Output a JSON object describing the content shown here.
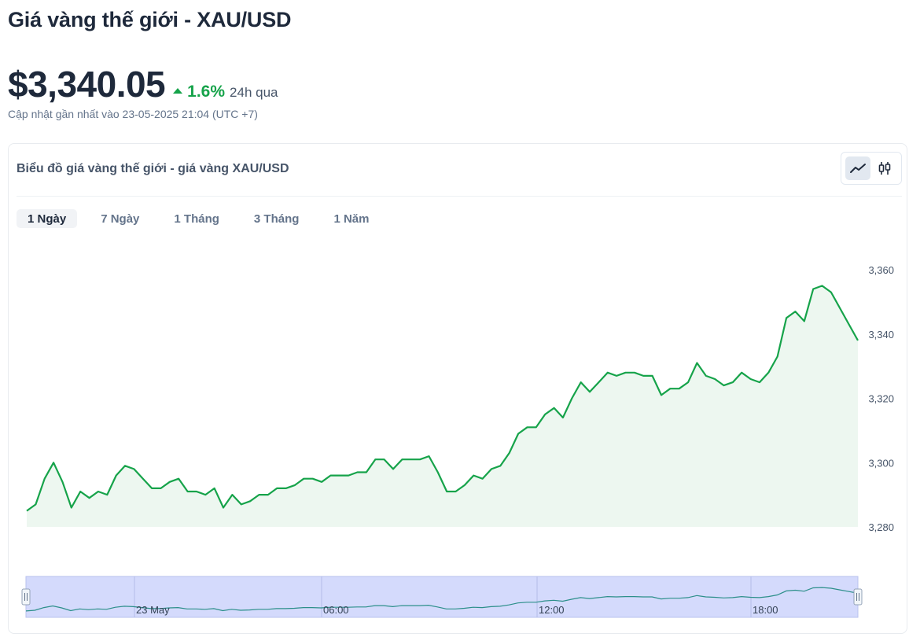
{
  "header": {
    "title": "Giá vàng thế giới - XAU/USD",
    "price": "$3,340.05",
    "change_pct": "1.6%",
    "change_period": "24h qua",
    "updated": "Cập nhật gần nhất vào 23-05-2025 21:04 (UTC +7)"
  },
  "card": {
    "title": "Biểu đồ giá vàng thế giới - giá vàng XAU/USD",
    "chart_types": [
      {
        "icon": "line-chart-icon",
        "active": true
      },
      {
        "icon": "candlestick-icon",
        "active": false
      }
    ]
  },
  "tabs": [
    {
      "label": "1 Ngày",
      "active": true
    },
    {
      "label": "7 Ngày",
      "active": false
    },
    {
      "label": "1 Tháng",
      "active": false
    },
    {
      "label": "3 Tháng",
      "active": false
    },
    {
      "label": "1 Năm",
      "active": false
    }
  ],
  "colors": {
    "line": "#16a34a",
    "area": "#edf7f0",
    "navigator_bg": "#d4dafc",
    "navigator_line": "#2c8f8a",
    "up": "#16a34a"
  },
  "chart_data": {
    "type": "area",
    "ylim": [
      3280,
      3360
    ],
    "yticks": [
      "3,280",
      "3,300",
      "3,320",
      "3,340",
      "3,360"
    ],
    "ytick_values": [
      3280,
      3300,
      3320,
      3340,
      3360
    ],
    "grid": false,
    "values": [
      3285,
      3287,
      3295,
      3300,
      3294,
      3286,
      3291,
      3289,
      3291,
      3290,
      3296,
      3299,
      3298,
      3295,
      3292,
      3292,
      3294,
      3295,
      3291,
      3291,
      3290,
      3292,
      3286,
      3290,
      3287,
      3288,
      3290,
      3290,
      3292,
      3292,
      3293,
      3295,
      3295,
      3294,
      3296,
      3296,
      3296,
      3297,
      3297,
      3301,
      3301,
      3298,
      3301,
      3301,
      3301,
      3302,
      3297,
      3291,
      3291,
      3293,
      3296,
      3295,
      3298,
      3299,
      3303,
      3309,
      3311,
      3311,
      3315,
      3317,
      3314,
      3320,
      3325,
      3322,
      3325,
      3328,
      3327,
      3328,
      3328,
      3327,
      3327,
      3321,
      3323,
      3323,
      3325,
      3331,
      3327,
      3326,
      3324,
      3325,
      3328,
      3326,
      3325,
      3328,
      3333,
      3345,
      3347,
      3344,
      3354,
      3355,
      3353,
      3348,
      3343,
      3338
    ],
    "navigator": {
      "labels": [
        "23 May",
        "06:00",
        "12:00",
        "18:00"
      ]
    }
  }
}
